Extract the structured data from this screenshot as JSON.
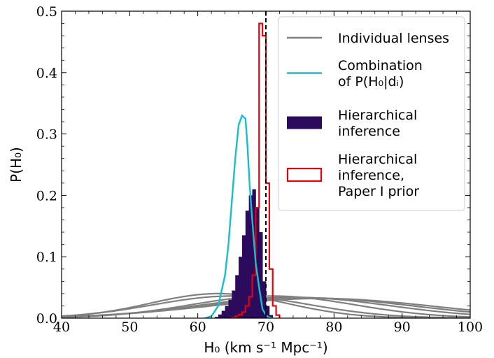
{
  "chart_data": {
    "type": "line",
    "xlabel": "H₀ (km s⁻¹ Mpc⁻¹)",
    "ylabel": "P(H₀)",
    "xlim": [
      40,
      100
    ],
    "ylim": [
      0,
      0.5
    ],
    "x_ticks": [
      "40",
      "50",
      "60",
      "70",
      "80",
      "90",
      "100"
    ],
    "y_ticks": [
      "0.0",
      "0.1",
      "0.2",
      "0.3",
      "0.4",
      "0.5"
    ],
    "reference_line": {
      "x": 70,
      "style": "dashed",
      "color": "#000000"
    },
    "individual_lenses": {
      "name": "Individual lenses",
      "color": "#808080",
      "curves": [
        {
          "mean": 63.0,
          "sigma": 10.0,
          "peak": 0.04
        },
        {
          "mean": 65.0,
          "sigma": 11.5,
          "peak": 0.036
        },
        {
          "mean": 71.0,
          "sigma": 12.0,
          "peak": 0.036
        },
        {
          "mean": 74.0,
          "sigma": 14.0,
          "peak": 0.034
        },
        {
          "mean": 76.0,
          "sigma": 15.5,
          "peak": 0.033
        },
        {
          "mean": 78.0,
          "sigma": 16.5,
          "peak": 0.032
        }
      ]
    },
    "combination": {
      "name": "Combination of P(H₀|dᵢ)",
      "color": "#17becf",
      "x": [
        61,
        62,
        63,
        64,
        64.5,
        65,
        65.5,
        66,
        66.5,
        67,
        67.3,
        67.6,
        68,
        68.5,
        69,
        69.5,
        70,
        70.5,
        71
      ],
      "y": [
        0.0,
        0.003,
        0.02,
        0.07,
        0.12,
        0.19,
        0.26,
        0.315,
        0.33,
        0.325,
        0.28,
        0.22,
        0.16,
        0.09,
        0.05,
        0.015,
        0.005,
        0.001,
        0.0
      ]
    },
    "hierarchical": {
      "name": "Hierarchical inference",
      "color": "#2c0b5c",
      "bins": [
        62.5,
        63,
        63.5,
        64,
        64.5,
        65,
        65.5,
        66,
        66.5,
        67,
        67.5,
        68,
        68.5,
        69,
        69.5,
        70,
        70.5,
        71
      ],
      "values": [
        0.002,
        0.006,
        0.012,
        0.02,
        0.03,
        0.045,
        0.07,
        0.1,
        0.135,
        0.175,
        0.2,
        0.21,
        0.18,
        0.14,
        0.06,
        0.02,
        0.005
      ]
    },
    "hierarchical_prior": {
      "name": "Hierarchical inference, Paper I prior",
      "color": "#e8000b",
      "bins": [
        65,
        65.5,
        66,
        66.5,
        67,
        67.5,
        68,
        68.5,
        69,
        69.5,
        70,
        70.5,
        71,
        71.5,
        72
      ],
      "values": [
        0.001,
        0.003,
        0.006,
        0.01,
        0.02,
        0.035,
        0.07,
        0.18,
        0.48,
        0.46,
        0.22,
        0.08,
        0.02,
        0.005
      ]
    },
    "legend": {
      "location": "top-right",
      "entries": [
        {
          "key": "individual",
          "lines": [
            "Individual lenses"
          ]
        },
        {
          "key": "combination",
          "lines": [
            "Combination",
            "of P(H₀|dᵢ)"
          ]
        },
        {
          "key": "hierarchical",
          "lines": [
            "Hierarchical",
            "inference"
          ]
        },
        {
          "key": "hierarchical_prior",
          "lines": [
            "Hierarchical",
            "inference,",
            "Paper I prior"
          ]
        }
      ]
    }
  }
}
